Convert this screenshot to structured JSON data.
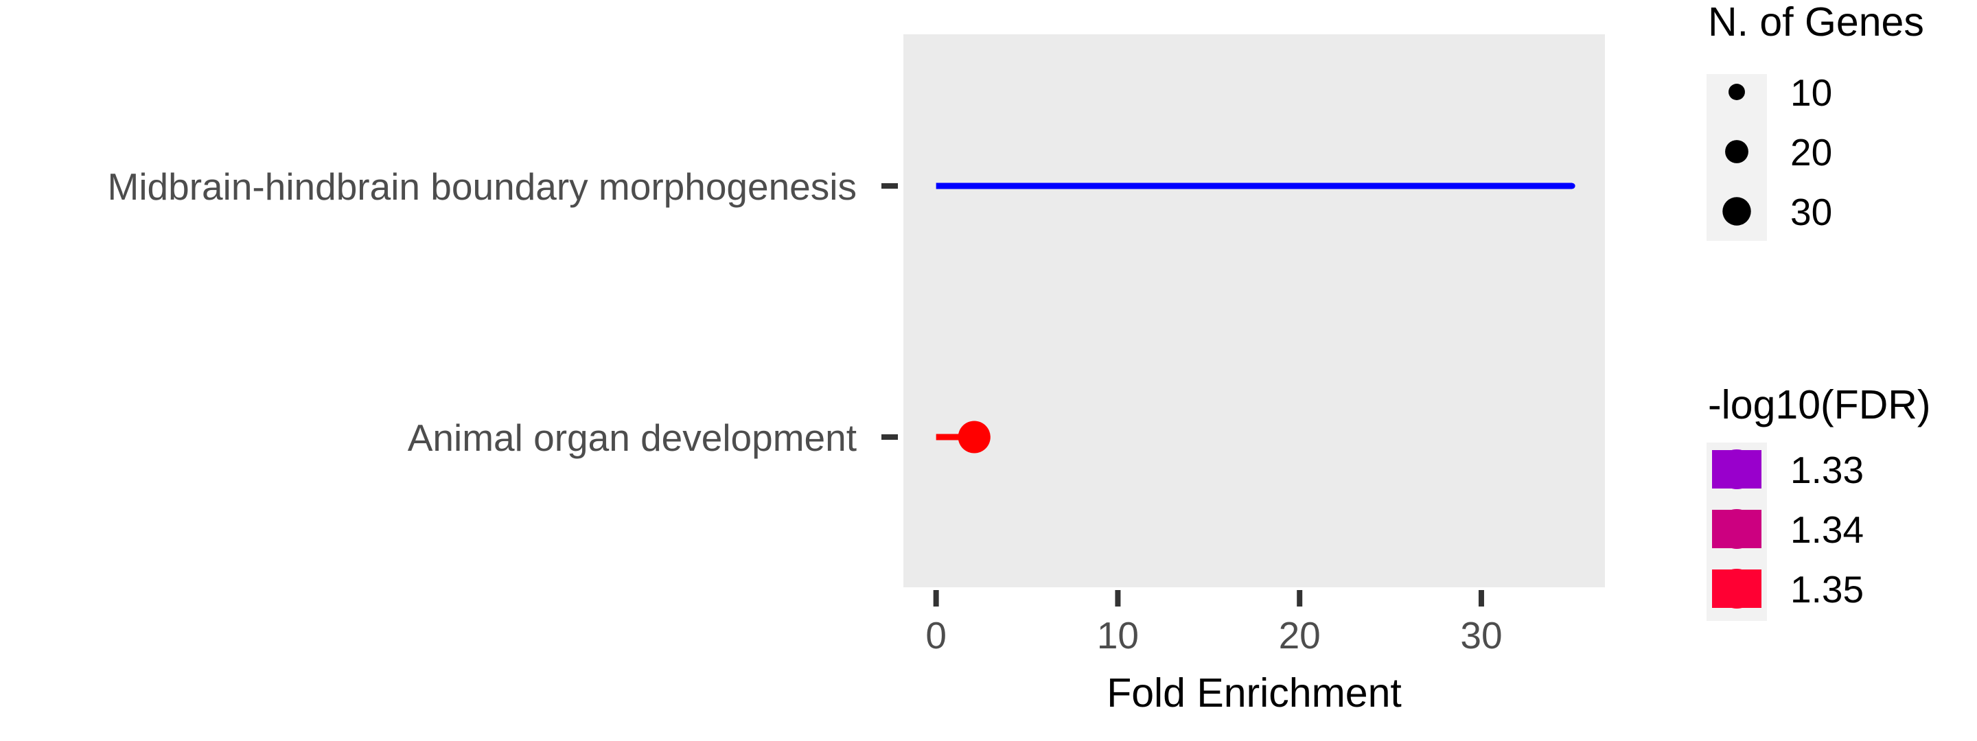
{
  "chart_data": {
    "type": "lollipop",
    "categories": [
      "Midbrain-hindbrain boundary morphogenesis",
      "Animal organ development"
    ],
    "fold_enrichment": [
      35,
      2.1
    ],
    "n_genes": [
      1,
      30
    ],
    "neg_log10_fdr": [
      1.33,
      1.35
    ],
    "series_colors": [
      "#0000ff",
      "#ff0000"
    ],
    "xlabel": "Fold Enrichment",
    "ylabel": "",
    "xlim": [
      -1.8,
      36.8
    ],
    "xticks": [
      "0",
      "10",
      "20",
      "30"
    ],
    "xtick_values": [
      0,
      10,
      20,
      30
    ],
    "panel_background": "#ebebeb",
    "grid": false,
    "legend_position": "right",
    "size_legend": {
      "title": "N. of Genes",
      "labels": [
        "10",
        "20",
        "30"
      ],
      "values": [
        10,
        20,
        30
      ]
    },
    "color_legend": {
      "title": "-log10(FDR)",
      "labels": [
        "1.33",
        "1.34",
        "1.35"
      ],
      "colors": [
        "#9900cc",
        "#cc0080",
        "#ff0033"
      ]
    }
  }
}
